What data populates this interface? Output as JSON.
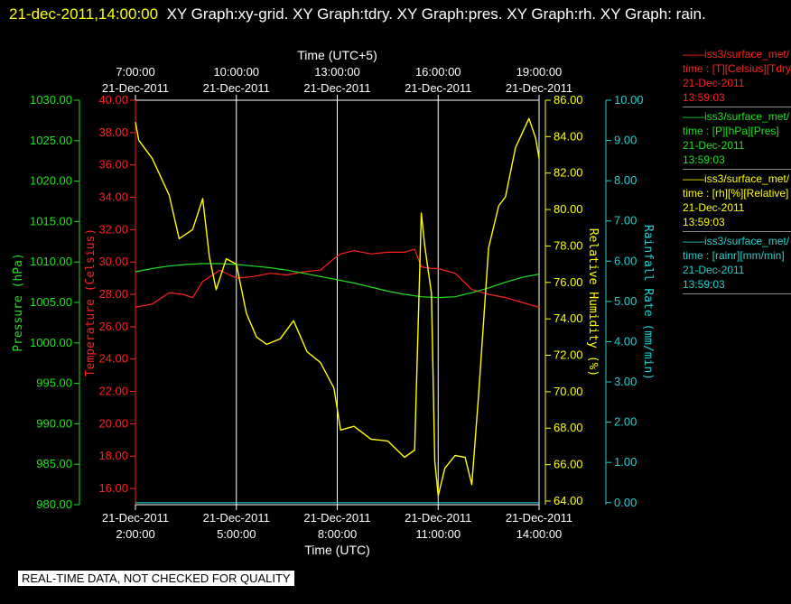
{
  "header": {
    "timestamp": "21-dec-2011,14:00:00",
    "titles": "XY Graph:xy-grid.  XY Graph:tdry.  XY Graph:pres.  XY Graph:rh.  XY Graph: rain."
  },
  "colors": {
    "temperature": "#ff2020",
    "pressure": "#20e020",
    "humidity": "#ffff00",
    "rain": "#20d0d0",
    "grid": "#ffffff",
    "background": "#000000"
  },
  "chart_data": {
    "type": "line",
    "top_axis_label": "Time (UTC+5)",
    "top_ticks": [
      {
        "time": "7:00:00",
        "date": "21-Dec-2011"
      },
      {
        "time": "10:00:00",
        "date": "21-Dec-2011"
      },
      {
        "time": "13:00:00",
        "date": "21-Dec-2011"
      },
      {
        "time": "16:00:00",
        "date": "21-Dec-2011"
      },
      {
        "time": "19:00:00",
        "date": "21-Dec-2011"
      }
    ],
    "bottom_axis_label": "Time (UTC)",
    "bottom_ticks": [
      {
        "date": "21-Dec-2011",
        "time": "2:00:00"
      },
      {
        "date": "21-Dec-2011",
        "time": "5:00:00"
      },
      {
        "date": "21-Dec-2011",
        "time": "8:00:00"
      },
      {
        "date": "21-Dec-2011",
        "time": "11:00:00"
      },
      {
        "date": "21-Dec-2011",
        "time": "14:00:00"
      }
    ],
    "xlim_hours_utc": [
      2,
      14
    ],
    "grid": "vertical lines at each 3-hour tick",
    "axes": {
      "pressure": {
        "label": "Pressure (hPa)",
        "ylim": [
          980,
          1030
        ],
        "ticks": [
          "980.00",
          "985.00",
          "990.00",
          "995.00",
          "1000.00",
          "1005.00",
          "1010.00",
          "1015.00",
          "1020.00",
          "1025.00",
          "1030.00"
        ]
      },
      "temperature": {
        "label": "Temperature (Celsius)",
        "ylim": [
          15,
          40
        ],
        "ticks": [
          "16.00",
          "18.00",
          "20.00",
          "22.00",
          "24.00",
          "26.00",
          "28.00",
          "30.00",
          "32.00",
          "34.00",
          "36.00",
          "38.00",
          "40.00"
        ]
      },
      "humidity": {
        "label": "Relative Humidity (%)",
        "ylim": [
          63.8,
          86
        ],
        "ticks": [
          "64.00",
          "66.00",
          "68.00",
          "70.00",
          "72.00",
          "74.00",
          "76.00",
          "78.00",
          "80.00",
          "82.00",
          "84.00",
          "86.00"
        ]
      },
      "rain": {
        "label": "Rainfall Rate (mm/min)",
        "ylim": [
          -0.05,
          10
        ],
        "ticks": [
          "0.00",
          "1.00",
          "2.00",
          "3.00",
          "4.00",
          "5.00",
          "6.00",
          "7.00",
          "8.00",
          "9.00",
          "10.00"
        ]
      }
    },
    "series": [
      {
        "axis": "temperature",
        "x": [
          2.0,
          2.5,
          3.0,
          3.4,
          3.7,
          4.0,
          4.3,
          4.5,
          5.0,
          5.5,
          6.0,
          6.5,
          7.0,
          7.5,
          7.9,
          8.1,
          8.5,
          9.0,
          9.5,
          10.0,
          10.3,
          10.5,
          10.8,
          11.0,
          11.5,
          12.0,
          12.5,
          13.0,
          13.5,
          14.0
        ],
        "y": [
          27.2,
          27.4,
          28.1,
          28.0,
          27.8,
          28.8,
          29.2,
          29.5,
          29.0,
          29.1,
          29.3,
          29.2,
          29.4,
          29.5,
          30.2,
          30.5,
          30.7,
          30.5,
          30.6,
          30.6,
          30.8,
          29.7,
          29.6,
          29.6,
          29.3,
          28.3,
          28.0,
          27.8,
          27.5,
          27.2
        ]
      },
      {
        "axis": "pressure",
        "x": [
          2.0,
          2.5,
          3.0,
          3.5,
          4.0,
          4.5,
          5.0,
          5.5,
          6.0,
          6.5,
          7.0,
          7.5,
          8.0,
          8.5,
          9.0,
          9.5,
          10.0,
          10.5,
          11.0,
          11.5,
          12.0,
          12.5,
          13.0,
          13.5,
          14.0
        ],
        "y": [
          1008.8,
          1009.2,
          1009.5,
          1009.7,
          1009.8,
          1009.8,
          1009.7,
          1009.5,
          1009.3,
          1009.0,
          1008.6,
          1008.2,
          1007.8,
          1007.4,
          1006.9,
          1006.4,
          1006.0,
          1005.7,
          1005.6,
          1005.7,
          1006.2,
          1006.8,
          1007.5,
          1008.1,
          1008.5
        ]
      },
      {
        "axis": "humidity",
        "x": [
          2.0,
          2.1,
          2.5,
          3.0,
          3.3,
          3.7,
          4.0,
          4.2,
          4.4,
          4.7,
          5.0,
          5.3,
          5.6,
          5.9,
          6.3,
          6.7,
          7.1,
          7.5,
          7.9,
          8.1,
          8.5,
          9.0,
          9.5,
          10.0,
          10.3,
          10.5,
          10.6,
          10.8,
          10.9,
          11.0,
          11.2,
          11.5,
          11.8,
          12.0,
          12.2,
          12.5,
          12.8,
          13.0,
          13.3,
          13.5,
          13.7,
          13.9,
          14.0
        ],
        "y": [
          84.8,
          83.8,
          82.8,
          80.8,
          78.4,
          78.9,
          80.6,
          77.4,
          75.6,
          77.3,
          77.0,
          74.3,
          73.0,
          72.6,
          72.9,
          73.9,
          72.2,
          71.6,
          70.2,
          67.9,
          68.1,
          67.4,
          67.3,
          66.4,
          66.8,
          79.8,
          78.0,
          75.4,
          66.2,
          64.3,
          65.8,
          66.5,
          66.4,
          64.9,
          69.8,
          77.9,
          80.2,
          80.7,
          83.4,
          84.2,
          85.0,
          83.9,
          82.8
        ]
      },
      {
        "axis": "rain",
        "x": [
          2.0,
          14.0
        ],
        "y": [
          0.0,
          0.0
        ]
      }
    ]
  },
  "legend": [
    {
      "line": "——iss3/surface_met/",
      "desc": "time : [T][Celsius][Tdry]",
      "date": "21-Dec-2011",
      "time": "13:59:03"
    },
    {
      "line": "——iss3/surface_met/",
      "desc": "time : [P][hPa][Pres]",
      "date": "21-Dec-2011",
      "time": "13:59:03"
    },
    {
      "line": "——iss3/surface_met/",
      "desc": "time : [rh][%][Relative]",
      "date": "21-Dec-2011",
      "time": "13:59:03"
    },
    {
      "line": "——iss3/surface_met/",
      "desc": "time : [rainr][mm/min]",
      "date": "21-Dec-2011",
      "time": "13:59:03"
    }
  ],
  "disclaimer": "REAL-TIME DATA, NOT CHECKED FOR QUALITY"
}
